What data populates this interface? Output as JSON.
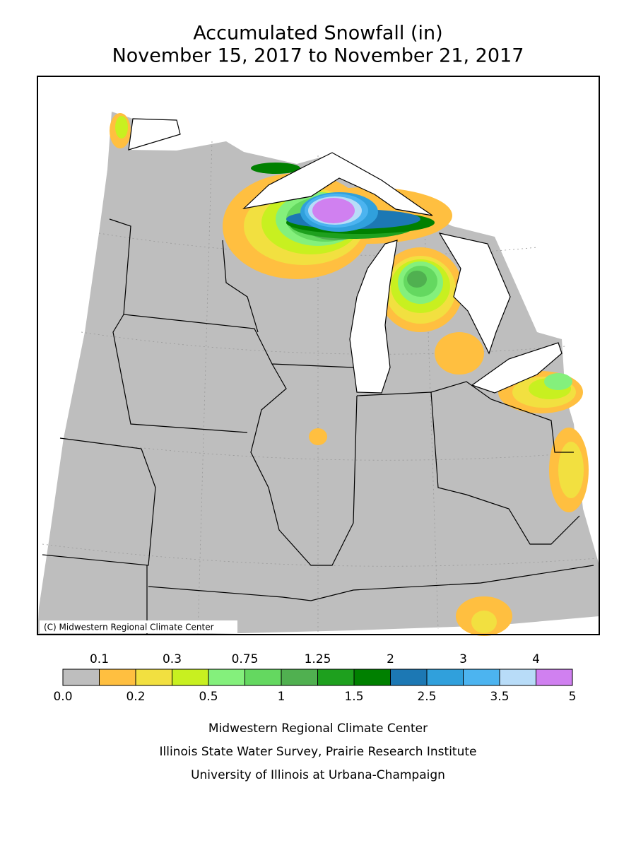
{
  "title": [
    "Accumulated Snowfall (in)",
    "November 15, 2017 to November 21, 2017"
  ],
  "copyright": "(C) Midwestern Regional Climate Center",
  "legend": {
    "boundaries": [
      "0.0",
      "0.1",
      "0.2",
      "0.3",
      "0.5",
      "0.75",
      "1",
      "1.25",
      "1.5",
      "2",
      "2.5",
      "3",
      "3.5",
      "4",
      "5"
    ],
    "colors": [
      "#bebebe",
      "#ffbf40",
      "#f2e040",
      "#c8f020",
      "#84f07c",
      "#64d860",
      "#50b050",
      "#1ea01e",
      "#008000",
      "#1c78b4",
      "#30a0dc",
      "#4cb4f0",
      "#b8dcf8",
      "#d080f0"
    ]
  },
  "footer": [
    "Midwestern Regional Climate Center",
    "Illinois State Water Survey, Prairie Research Institute",
    "University of Illinois at Urbana-Champaign"
  ]
}
